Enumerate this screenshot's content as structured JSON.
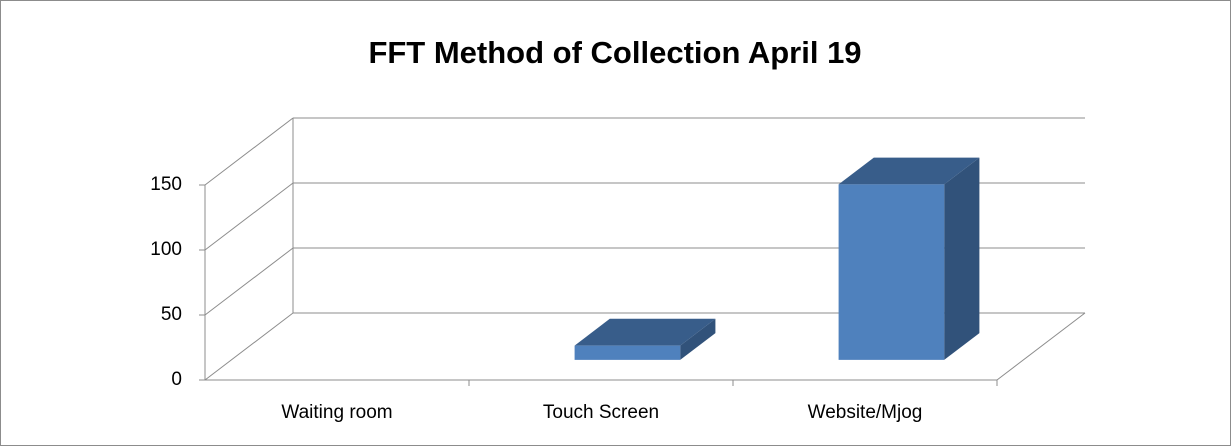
{
  "chart_data": {
    "type": "bar3d",
    "title": "FFT Method of Collection April 19",
    "categories": [
      "Waiting room",
      "Touch Screen",
      "Website/Mjog"
    ],
    "values": [
      0,
      11,
      135
    ],
    "color": "#4f81bd",
    "ylim": [
      0,
      150
    ],
    "yticks": [
      0,
      50,
      100,
      150
    ],
    "grid": true
  }
}
